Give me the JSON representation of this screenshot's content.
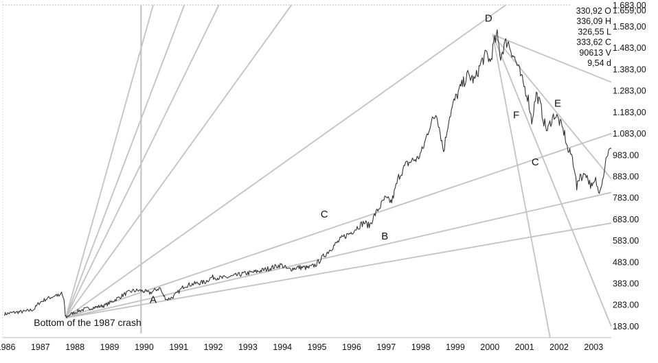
{
  "chart_data": {
    "type": "line",
    "title": "",
    "xlabel": "",
    "ylabel": "",
    "xlim": [
      1985.95,
      2003.55
    ],
    "ylim": [
      130,
      1700
    ],
    "x_tick_labels": [
      "1986",
      "1987",
      "1988",
      "1989",
      "1990",
      "1991",
      "1992",
      "1993",
      "1994",
      "1995",
      "1996",
      "1997",
      "1998",
      "1999",
      "2000",
      "2001",
      "2002",
      "2003"
    ],
    "y_tick_labels": [
      "1.683,00",
      "1.659,00",
      "1.583,00",
      "1.483,00",
      "1.383,00",
      "1.283,00",
      "1.183,00",
      "1.083,00",
      "983.00",
      "883.00",
      "783.00",
      "683.00",
      "583.00",
      "483.00",
      "383.00",
      "283.00",
      "183.00"
    ],
    "y_tick_values": [
      1683,
      1659,
      1583,
      1483,
      1383,
      1283,
      1183,
      1083,
      983,
      883,
      783,
      683,
      583,
      483,
      383,
      283,
      183
    ],
    "ohlc_readout": [
      "330,92 O",
      "336,09 H",
      "326,55 L",
      "333,62 C",
      "90613 V",
      "9,54 d"
    ],
    "reference_line": {
      "x": 1989.95
    },
    "dotted_level": 1683,
    "series": [
      {
        "style": "price",
        "points": [
          [
            1986.0,
            240
          ],
          [
            1986.3,
            248
          ],
          [
            1986.6,
            252
          ],
          [
            1986.85,
            262
          ],
          [
            1987.0,
            292
          ],
          [
            1987.2,
            310
          ],
          [
            1987.4,
            322
          ],
          [
            1987.5,
            330
          ],
          [
            1987.6,
            322
          ],
          [
            1987.65,
            340
          ],
          [
            1987.72,
            305
          ],
          [
            1987.76,
            232
          ],
          [
            1987.8,
            226
          ],
          [
            1987.9,
            238
          ],
          [
            1988.1,
            252
          ],
          [
            1988.3,
            262
          ],
          [
            1988.5,
            268
          ],
          [
            1988.7,
            274
          ],
          [
            1988.9,
            280
          ],
          [
            1989.1,
            298
          ],
          [
            1989.3,
            316
          ],
          [
            1989.5,
            335
          ],
          [
            1989.7,
            348
          ],
          [
            1989.85,
            350
          ],
          [
            1990.0,
            348
          ],
          [
            1990.2,
            338
          ],
          [
            1990.4,
            355
          ],
          [
            1990.5,
            362
          ],
          [
            1990.58,
            330
          ],
          [
            1990.7,
            308
          ],
          [
            1990.85,
            318
          ],
          [
            1991.0,
            338
          ],
          [
            1991.2,
            372
          ],
          [
            1991.5,
            382
          ],
          [
            1991.8,
            390
          ],
          [
            1992.0,
            412
          ],
          [
            1992.3,
            408
          ],
          [
            1992.6,
            416
          ],
          [
            1992.9,
            428
          ],
          [
            1993.2,
            435
          ],
          [
            1993.5,
            446
          ],
          [
            1993.8,
            460
          ],
          [
            1994.0,
            470
          ],
          [
            1994.2,
            448
          ],
          [
            1994.5,
            458
          ],
          [
            1994.8,
            456
          ],
          [
            1995.0,
            470
          ],
          [
            1995.2,
            505
          ],
          [
            1995.5,
            555
          ],
          [
            1995.8,
            600
          ],
          [
            1996.0,
            618
          ],
          [
            1996.2,
            645
          ],
          [
            1996.4,
            668
          ],
          [
            1996.55,
            652
          ],
          [
            1996.7,
            700
          ],
          [
            1996.9,
            752
          ],
          [
            1997.0,
            778
          ],
          [
            1997.2,
            765
          ],
          [
            1997.4,
            880
          ],
          [
            1997.6,
            935
          ],
          [
            1997.8,
            958
          ],
          [
            1997.95,
            965
          ],
          [
            1998.1,
            1010
          ],
          [
            1998.3,
            1120
          ],
          [
            1998.5,
            1180
          ],
          [
            1998.6,
            1090
          ],
          [
            1998.7,
            1000
          ],
          [
            1998.85,
            1150
          ],
          [
            1999.0,
            1230
          ],
          [
            1999.2,
            1300
          ],
          [
            1999.4,
            1355
          ],
          [
            1999.6,
            1330
          ],
          [
            1999.8,
            1420
          ],
          [
            1999.95,
            1455
          ],
          [
            2000.05,
            1415
          ],
          [
            2000.15,
            1500
          ],
          [
            2000.25,
            1540
          ],
          [
            2000.35,
            1440
          ],
          [
            2000.45,
            1495
          ],
          [
            2000.55,
            1515
          ],
          [
            2000.7,
            1455
          ],
          [
            2000.85,
            1395
          ],
          [
            2000.95,
            1340
          ],
          [
            2001.05,
            1295
          ],
          [
            2001.15,
            1245
          ],
          [
            2001.25,
            1140
          ],
          [
            2001.38,
            1270
          ],
          [
            2001.5,
            1215
          ],
          [
            2001.6,
            1140
          ],
          [
            2001.7,
            1095
          ],
          [
            2001.8,
            1140
          ],
          [
            2001.9,
            1170
          ],
          [
            2002.0,
            1155
          ],
          [
            2002.1,
            1120
          ],
          [
            2002.2,
            1080
          ],
          [
            2002.3,
            1000
          ],
          [
            2002.4,
            985
          ],
          [
            2002.5,
            910
          ],
          [
            2002.55,
            825
          ],
          [
            2002.65,
            895
          ],
          [
            2002.72,
            875
          ],
          [
            2002.8,
            905
          ],
          [
            2002.9,
            860
          ],
          [
            2003.0,
            830
          ],
          [
            2003.1,
            865
          ],
          [
            2003.18,
            810
          ],
          [
            2003.3,
            870
          ],
          [
            2003.42,
            985
          ],
          [
            2003.55,
            1012
          ]
        ]
      },
      {
        "style": "fan",
        "points": [
          [
            1987.77,
            222
          ],
          [
            1990.3,
            1683
          ]
        ]
      },
      {
        "style": "fan",
        "points": [
          [
            1987.77,
            222
          ],
          [
            1991.2,
            1683
          ]
        ]
      },
      {
        "style": "fan",
        "points": [
          [
            1987.77,
            222
          ],
          [
            1992.2,
            1683
          ]
        ]
      },
      {
        "style": "fan",
        "points": [
          [
            1987.77,
            222
          ],
          [
            1994.3,
            1683
          ]
        ]
      },
      {
        "style": "fan",
        "points": [
          [
            1987.77,
            222
          ],
          [
            2000.5,
            1683
          ]
        ]
      },
      {
        "style": "fan",
        "points": [
          [
            1987.77,
            222
          ],
          [
            2003.55,
            1083
          ]
        ]
      },
      {
        "style": "fan",
        "points": [
          [
            1987.77,
            222
          ],
          [
            2003.55,
            808
          ]
        ]
      },
      {
        "style": "fan",
        "points": [
          [
            1987.77,
            222
          ],
          [
            2003.55,
            665
          ]
        ]
      },
      {
        "style": "fan",
        "points": [
          [
            2000.12,
            1545
          ],
          [
            2003.55,
            1323
          ]
        ]
      },
      {
        "style": "fan",
        "points": [
          [
            2000.12,
            1545
          ],
          [
            2003.55,
            871
          ]
        ]
      },
      {
        "style": "fan",
        "points": [
          [
            2000.12,
            1545
          ],
          [
            2003.55,
            182
          ]
        ]
      },
      {
        "style": "fan",
        "points": [
          [
            2000.12,
            1545
          ],
          [
            2001.78,
            130
          ]
        ]
      }
    ],
    "annotations": [
      {
        "text": "D",
        "x": 2000.0,
        "y": 1605
      },
      {
        "text": "E",
        "x": 2002.0,
        "y": 1208
      },
      {
        "text": "F",
        "x": 2000.8,
        "y": 1153
      },
      {
        "text": "C",
        "x": 2001.35,
        "y": 935
      },
      {
        "text": "C",
        "x": 1995.25,
        "y": 690
      },
      {
        "text": "B",
        "x": 1997.0,
        "y": 588
      },
      {
        "text": "A",
        "x": 1990.3,
        "y": 292
      },
      {
        "text": "Bottom of the 1987 crash",
        "x": 1986.85,
        "y": 185
      }
    ],
    "grid": false,
    "legend": "none"
  }
}
